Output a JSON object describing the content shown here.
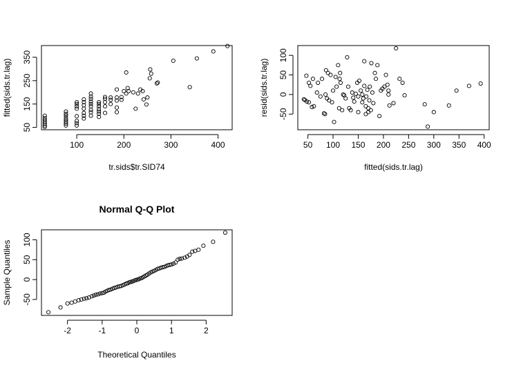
{
  "chart_data": [
    {
      "type": "scatter",
      "title": "",
      "xlabel": "tr.sids$tr.SID74",
      "ylabel": "fitted(sids.tr.lag)",
      "xlim": [
        25,
        430
      ],
      "ylim": [
        40,
        400
      ],
      "xticks": [
        100,
        200,
        300,
        400
      ],
      "yticks": [
        50,
        150,
        250,
        350
      ],
      "points": [
        [
          32,
          52
        ],
        [
          32,
          58
        ],
        [
          32,
          66
        ],
        [
          32,
          74
        ],
        [
          32,
          82
        ],
        [
          32,
          90
        ],
        [
          32,
          100
        ],
        [
          77,
          58
        ],
        [
          77,
          66
        ],
        [
          77,
          74
        ],
        [
          77,
          82
        ],
        [
          77,
          90
        ],
        [
          77,
          100
        ],
        [
          77,
          108
        ],
        [
          77,
          118
        ],
        [
          100,
          58
        ],
        [
          100,
          68
        ],
        [
          100,
          78
        ],
        [
          100,
          98
        ],
        [
          100,
          130
        ],
        [
          100,
          140
        ],
        [
          100,
          150
        ],
        [
          100,
          158
        ],
        [
          115,
          88
        ],
        [
          115,
          100
        ],
        [
          115,
          112
        ],
        [
          115,
          130
        ],
        [
          115,
          145
        ],
        [
          115,
          158
        ],
        [
          115,
          170
        ],
        [
          130,
          100
        ],
        [
          130,
          115
        ],
        [
          130,
          125
        ],
        [
          130,
          140
        ],
        [
          130,
          150
        ],
        [
          130,
          160
        ],
        [
          130,
          172
        ],
        [
          130,
          182
        ],
        [
          130,
          195
        ],
        [
          147,
          95
        ],
        [
          147,
          108
        ],
        [
          147,
          118
        ],
        [
          147,
          128
        ],
        [
          147,
          140
        ],
        [
          147,
          150
        ],
        [
          147,
          158
        ],
        [
          160,
          112
        ],
        [
          160,
          140
        ],
        [
          160,
          158
        ],
        [
          160,
          172
        ],
        [
          160,
          180
        ],
        [
          172,
          150
        ],
        [
          172,
          168
        ],
        [
          172,
          178
        ],
        [
          185,
          115
        ],
        [
          185,
          135
        ],
        [
          185,
          165
        ],
        [
          185,
          178
        ],
        [
          185,
          212
        ],
        [
          195,
          168
        ],
        [
          195,
          180
        ],
        [
          200,
          205
        ],
        [
          205,
          195
        ],
        [
          205,
          285
        ],
        [
          208,
          218
        ],
        [
          210,
          205
        ],
        [
          220,
          200
        ],
        [
          225,
          130
        ],
        [
          230,
          195
        ],
        [
          235,
          212
        ],
        [
          240,
          205
        ],
        [
          242,
          170
        ],
        [
          248,
          148
        ],
        [
          250,
          178
        ],
        [
          255,
          260
        ],
        [
          256,
          298
        ],
        [
          258,
          280
        ],
        [
          270,
          238
        ],
        [
          272,
          242
        ],
        [
          305,
          335
        ],
        [
          340,
          222
        ],
        [
          355,
          345
        ],
        [
          390,
          375
        ],
        [
          420,
          398
        ]
      ]
    },
    {
      "type": "scatter",
      "title": "",
      "xlabel": "fitted(sids.tr.lag)",
      "ylabel": "resid(sids.tr.lag)",
      "xlim": [
        30,
        410
      ],
      "ylim": [
        -90,
        125
      ],
      "xticks": [
        50,
        100,
        150,
        200,
        250,
        300,
        350,
        400
      ],
      "yticks": [
        -50,
        0,
        50,
        100
      ],
      "points": [
        [
          42,
          -12
        ],
        [
          44,
          -14
        ],
        [
          48,
          -18
        ],
        [
          52,
          -20
        ],
        [
          58,
          -32
        ],
        [
          62,
          -30
        ],
        [
          47,
          48
        ],
        [
          52,
          30
        ],
        [
          55,
          22
        ],
        [
          60,
          40
        ],
        [
          68,
          5
        ],
        [
          70,
          30
        ],
        [
          75,
          -5
        ],
        [
          78,
          40
        ],
        [
          82,
          -48
        ],
        [
          84,
          -50
        ],
        [
          85,
          0
        ],
        [
          86,
          62
        ],
        [
          88,
          -10
        ],
        [
          90,
          55
        ],
        [
          92,
          -15
        ],
        [
          95,
          50
        ],
        [
          98,
          -20
        ],
        [
          100,
          10
        ],
        [
          102,
          -70
        ],
        [
          105,
          45
        ],
        [
          107,
          20
        ],
        [
          110,
          75
        ],
        [
          112,
          -35
        ],
        [
          113,
          40
        ],
        [
          114,
          55
        ],
        [
          115,
          30
        ],
        [
          118,
          -40
        ],
        [
          120,
          0
        ],
        [
          122,
          -2
        ],
        [
          125,
          -10
        ],
        [
          128,
          95
        ],
        [
          130,
          20
        ],
        [
          132,
          -35
        ],
        [
          135,
          -40
        ],
        [
          138,
          5
        ],
        [
          140,
          -8
        ],
        [
          142,
          -18
        ],
        [
          145,
          2
        ],
        [
          148,
          30
        ],
        [
          150,
          -45
        ],
        [
          150,
          -5
        ],
        [
          152,
          35
        ],
        [
          155,
          10
        ],
        [
          158,
          -20
        ],
        [
          158,
          0
        ],
        [
          160,
          -10
        ],
        [
          162,
          85
        ],
        [
          162,
          22
        ],
        [
          165,
          -50
        ],
        [
          165,
          -30
        ],
        [
          166,
          -5
        ],
        [
          168,
          12
        ],
        [
          170,
          -45
        ],
        [
          170,
          -35
        ],
        [
          172,
          -15
        ],
        [
          173,
          20
        ],
        [
          175,
          -40
        ],
        [
          176,
          80
        ],
        [
          178,
          5
        ],
        [
          180,
          -22
        ],
        [
          183,
          55
        ],
        [
          185,
          40
        ],
        [
          188,
          75
        ],
        [
          192,
          -55
        ],
        [
          195,
          10
        ],
        [
          198,
          15
        ],
        [
          202,
          20
        ],
        [
          205,
          50
        ],
        [
          208,
          25
        ],
        [
          210,
          10
        ],
        [
          210,
          0
        ],
        [
          212,
          -28
        ],
        [
          220,
          -22
        ],
        [
          225,
          118
        ],
        [
          232,
          40
        ],
        [
          238,
          30
        ],
        [
          242,
          -2
        ],
        [
          282,
          -25
        ],
        [
          288,
          -82
        ],
        [
          300,
          -45
        ],
        [
          330,
          -28
        ],
        [
          345,
          10
        ],
        [
          370,
          22
        ],
        [
          393,
          28
        ]
      ]
    },
    {
      "type": "scatter",
      "title": "Normal Q-Q Plot",
      "xlabel": "Theoretical Quantiles",
      "ylabel": "Sample Quantiles",
      "xlim": [
        -2.75,
        2.75
      ],
      "ylim": [
        -90,
        125
      ],
      "xticks": [
        -2,
        -1,
        0,
        1,
        2
      ],
      "yticks": [
        -50,
        0,
        50,
        100
      ],
      "points": [
        [
          -2.55,
          -82
        ],
        [
          -2.2,
          -70
        ],
        [
          -2.0,
          -60
        ],
        [
          -1.88,
          -58
        ],
        [
          -1.78,
          -55
        ],
        [
          -1.68,
          -52
        ],
        [
          -1.6,
          -50
        ],
        [
          -1.52,
          -48
        ],
        [
          -1.45,
          -47
        ],
        [
          -1.38,
          -45
        ],
        [
          -1.3,
          -42
        ],
        [
          -1.24,
          -40
        ],
        [
          -1.18,
          -38
        ],
        [
          -1.12,
          -37
        ],
        [
          -1.06,
          -35
        ],
        [
          -1.0,
          -34
        ],
        [
          -0.95,
          -33
        ],
        [
          -0.9,
          -30
        ],
        [
          -0.85,
          -28
        ],
        [
          -0.8,
          -26
        ],
        [
          -0.75,
          -25
        ],
        [
          -0.7,
          -23
        ],
        [
          -0.65,
          -21
        ],
        [
          -0.6,
          -20
        ],
        [
          -0.55,
          -18
        ],
        [
          -0.5,
          -17
        ],
        [
          -0.45,
          -16
        ],
        [
          -0.4,
          -14
        ],
        [
          -0.35,
          -12
        ],
        [
          -0.3,
          -10
        ],
        [
          -0.26,
          -9
        ],
        [
          -0.22,
          -7
        ],
        [
          -0.18,
          -6
        ],
        [
          -0.14,
          -5
        ],
        [
          -0.1,
          -4
        ],
        [
          -0.06,
          -2
        ],
        [
          -0.02,
          -1
        ],
        [
          0.02,
          0
        ],
        [
          0.06,
          1
        ],
        [
          0.1,
          3
        ],
        [
          0.14,
          4
        ],
        [
          0.18,
          6
        ],
        [
          0.22,
          8
        ],
        [
          0.26,
          10
        ],
        [
          0.3,
          12
        ],
        [
          0.35,
          15
        ],
        [
          0.4,
          18
        ],
        [
          0.45,
          20
        ],
        [
          0.5,
          22
        ],
        [
          0.55,
          24
        ],
        [
          0.6,
          27
        ],
        [
          0.65,
          28
        ],
        [
          0.7,
          30
        ],
        [
          0.75,
          31
        ],
        [
          0.8,
          32
        ],
        [
          0.85,
          34
        ],
        [
          0.9,
          36
        ],
        [
          0.95,
          37
        ],
        [
          1.0,
          38
        ],
        [
          1.06,
          40
        ],
        [
          1.12,
          43
        ],
        [
          1.18,
          50
        ],
        [
          1.24,
          52
        ],
        [
          1.3,
          53
        ],
        [
          1.38,
          55
        ],
        [
          1.45,
          58
        ],
        [
          1.52,
          62
        ],
        [
          1.6,
          70
        ],
        [
          1.68,
          72
        ],
        [
          1.78,
          75
        ],
        [
          1.92,
          85
        ],
        [
          2.2,
          95
        ],
        [
          2.55,
          118
        ]
      ]
    }
  ]
}
